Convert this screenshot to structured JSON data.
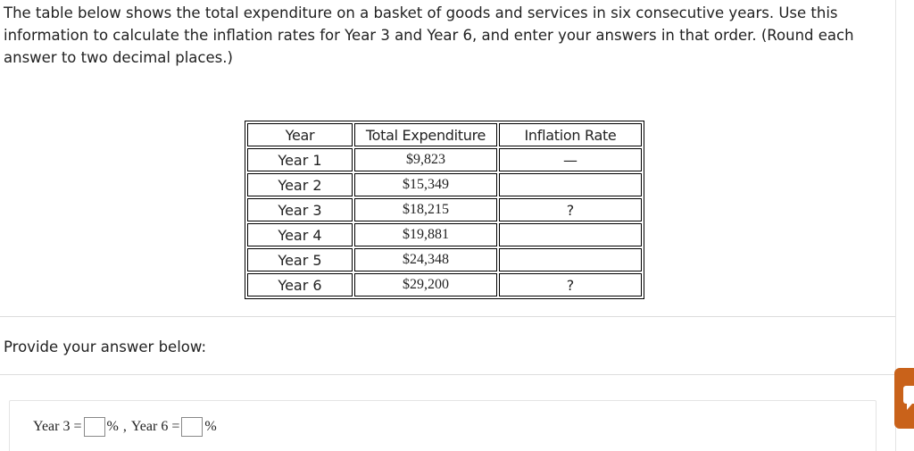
{
  "question": {
    "text": "The table below shows the total expenditure on a basket of goods and services in six consecutive years. Use this information to calculate the inflation rates for Year 3 and Year 6, and enter your answers in that order. (Round each answer to two decimal places.)"
  },
  "table": {
    "headers": [
      "Year",
      "Total Expenditure",
      "Inflation Rate"
    ],
    "rows": [
      {
        "year": "Year 1",
        "expenditure": "$9,823",
        "rate": "—"
      },
      {
        "year": "Year 2",
        "expenditure": "$15,349",
        "rate": ""
      },
      {
        "year": "Year 3",
        "expenditure": "$18,215",
        "rate": "?"
      },
      {
        "year": "Year 4",
        "expenditure": "$19,881",
        "rate": ""
      },
      {
        "year": "Year 5",
        "expenditure": "$24,348",
        "rate": ""
      },
      {
        "year": "Year 6",
        "expenditure": "$29,200",
        "rate": "?"
      }
    ]
  },
  "answer": {
    "prompt": "Provide your answer below:",
    "year3_label": "Year 3 =",
    "year3_value": "",
    "unit": "%",
    "separator": ",",
    "year6_label": "Year 6 =",
    "year6_value": ""
  },
  "colors": {
    "side_tab": "#c9621a",
    "divider": "#dddddd"
  },
  "icons": {
    "side_tab_icon": "chat-bubble-icon"
  }
}
